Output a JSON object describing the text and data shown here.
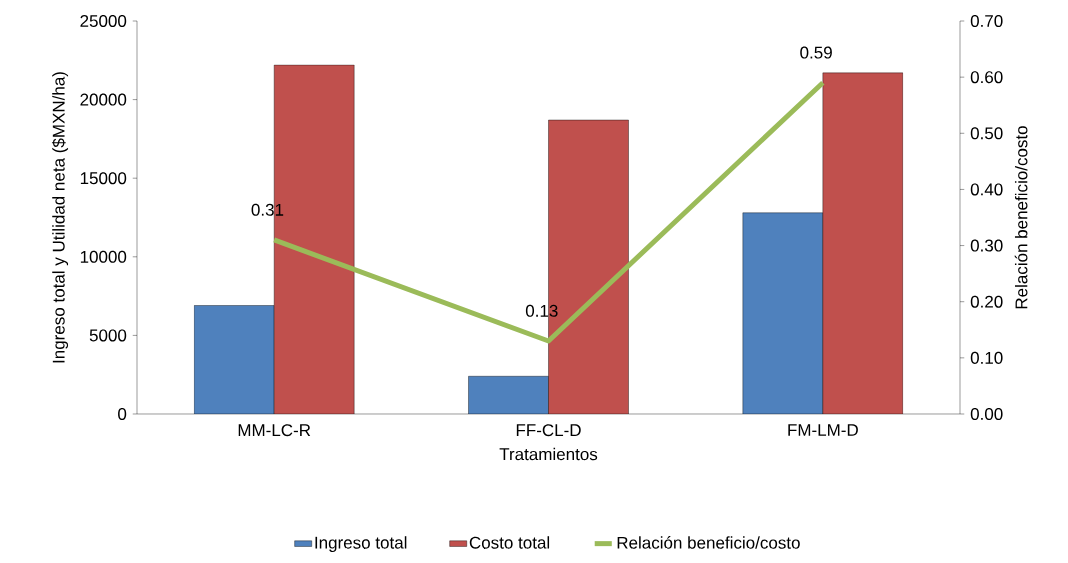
{
  "chart_data": {
    "type": "bar",
    "xlabel": "Tratamientos",
    "ylabel": "Ingreso total y Utilidad neta ($MXN/ha)",
    "y2label": "Relación beneficio/costo",
    "categories": [
      "MM-LC-R",
      "FF-CL-D",
      "FM-LM-D"
    ],
    "series": [
      {
        "name": "Ingreso total",
        "color": "#4f81bd",
        "values": [
          6900,
          2400,
          12800
        ]
      },
      {
        "name": "Costo  total",
        "color": "#c0504d",
        "values": [
          22200,
          18700,
          21700
        ]
      },
      {
        "name": "Relación beneficio/costo",
        "type": "line",
        "axis": "y2",
        "color": "#9bbb59",
        "values": [
          0.31,
          0.13,
          0.59
        ],
        "value_labels": [
          "0.31",
          "0.13",
          "0.59"
        ]
      }
    ],
    "ylim": [
      0,
      25000
    ],
    "yticks": [
      0,
      5000,
      10000,
      15000,
      20000,
      25000
    ],
    "y2lim": [
      0,
      0.7
    ],
    "y2ticks": [
      {
        "value": 0,
        "label": "0.00"
      },
      {
        "value": 0.1,
        "label": "0.10"
      },
      {
        "value": 0.2,
        "label": "0.20"
      },
      {
        "value": 0.3,
        "label": "0.30"
      },
      {
        "value": 0.4,
        "label": "0.40"
      },
      {
        "value": 0.5,
        "label": "0.50"
      },
      {
        "value": 0.6,
        "label": "0.60"
      },
      {
        "value": 0.7,
        "label": "0.70"
      }
    ],
    "legend": "bottom",
    "marker": "none"
  }
}
